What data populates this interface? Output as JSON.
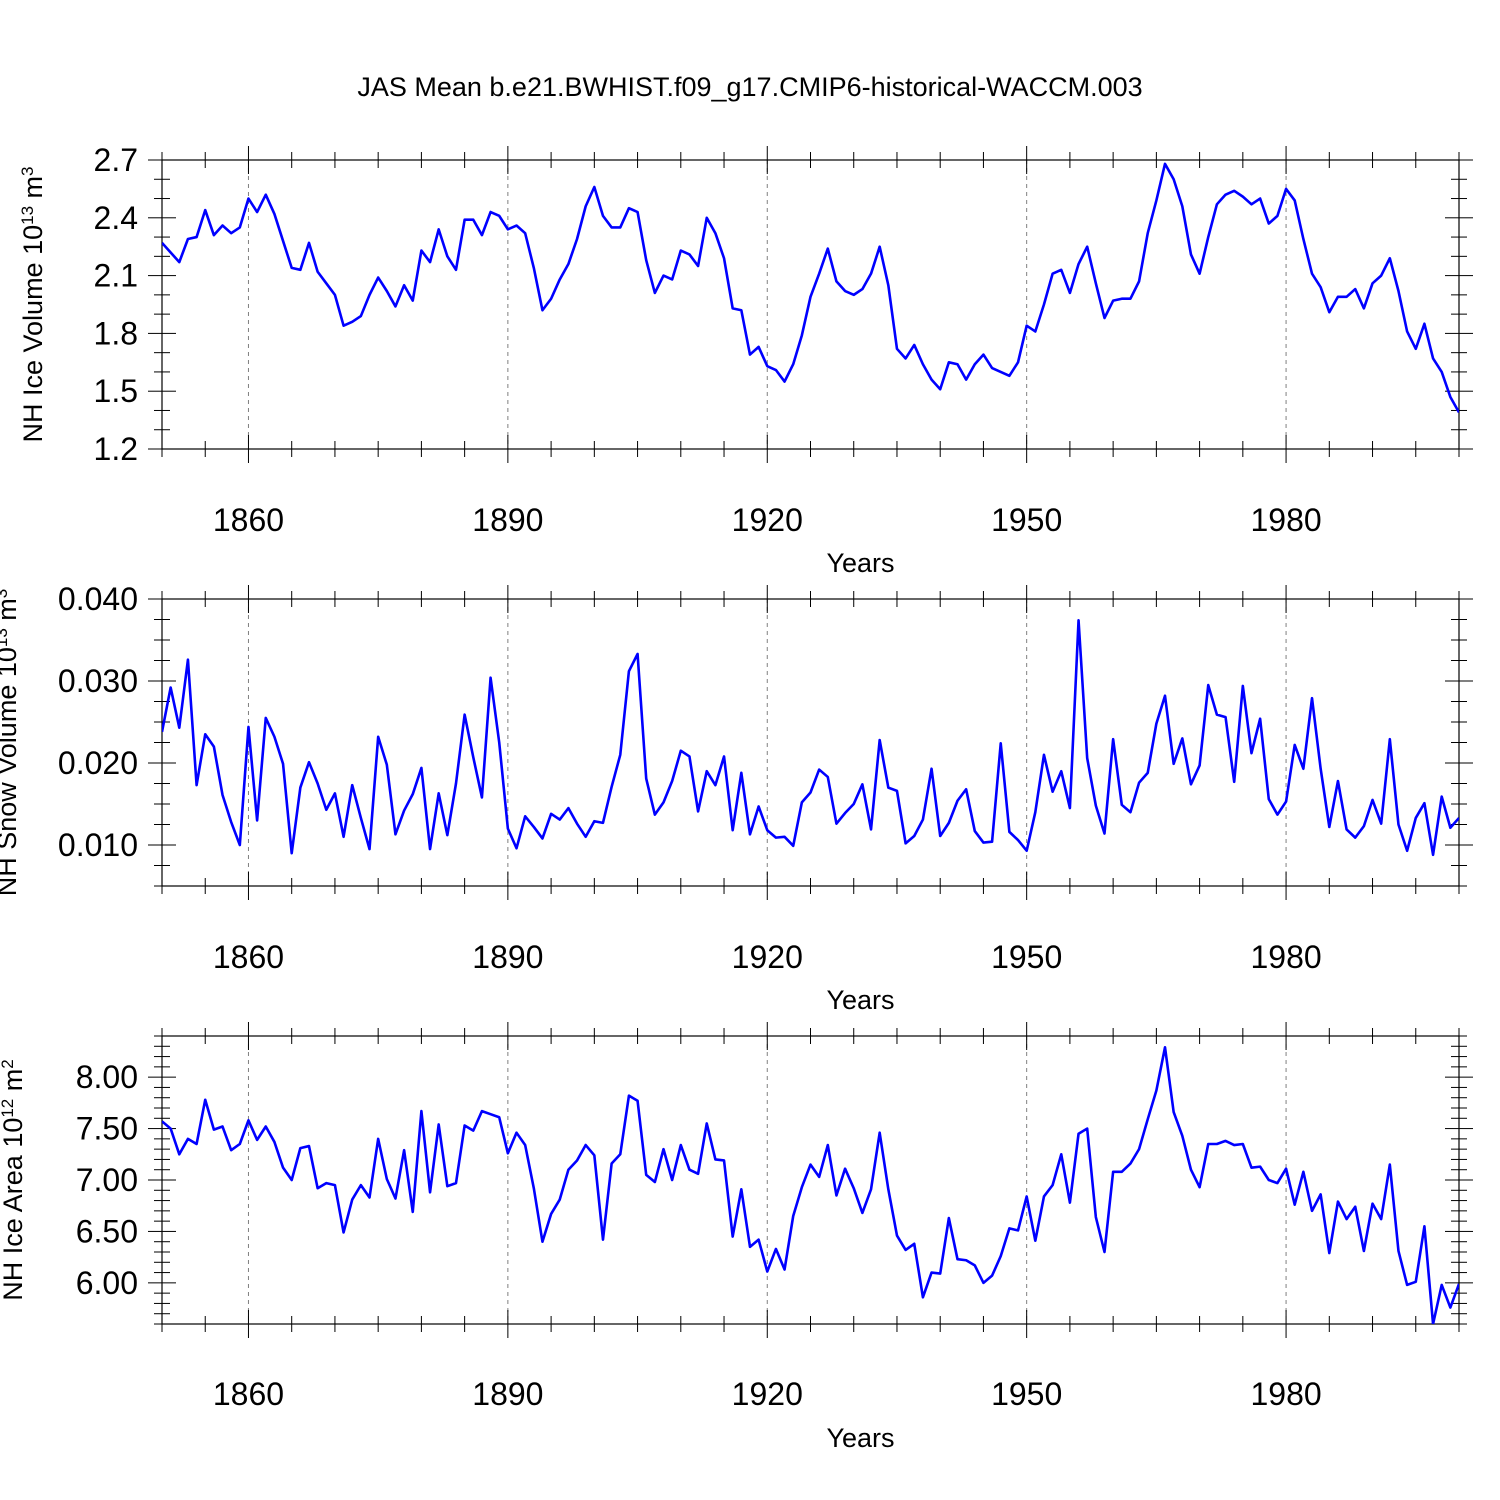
{
  "figure_title": "JAS Mean b.e21.BWHIST.f09_g17.CMIP6-historical-WACCM.003",
  "colors": {
    "series": "#0000ff",
    "frame": "#000000",
    "gridline": "#808080"
  },
  "chart_data": [
    {
      "type": "line",
      "title": "",
      "xlabel": "Years",
      "ylabel_main": "NH Ice Volume 10",
      "ylabel_sup": "13",
      "ylabel_unit": " m",
      "ylabel_unit_sup": "3",
      "xlim": [
        1850,
        2000
      ],
      "ylim": [
        1.2,
        2.7
      ],
      "grid": "dashed vertical lines at major x ticks",
      "xticks": [
        1860,
        1890,
        1920,
        1950,
        1980
      ],
      "xtick_labels": [
        "1860",
        "1890",
        "1920",
        "1950",
        "1980"
      ],
      "yticks": [
        1.2,
        1.5,
        1.8,
        2.1,
        2.4,
        2.7
      ],
      "ytick_labels": [
        "1.2",
        "1.5",
        "1.8",
        "2.1",
        "2.4",
        "2.7"
      ],
      "series": [
        {
          "name": "NH Ice Volume",
          "x_start": 1850,
          "x_step": 1,
          "values": [
            2.27,
            2.22,
            2.17,
            2.29,
            2.3,
            2.44,
            2.31,
            2.36,
            2.32,
            2.35,
            2.5,
            2.43,
            2.52,
            2.42,
            2.28,
            2.14,
            2.13,
            2.27,
            2.12,
            2.06,
            2.0,
            1.84,
            1.86,
            1.89,
            2.0,
            2.09,
            2.02,
            1.94,
            2.05,
            1.97,
            2.23,
            2.17,
            2.34,
            2.2,
            2.13,
            2.39,
            2.39,
            2.31,
            2.43,
            2.41,
            2.34,
            2.36,
            2.32,
            2.14,
            1.92,
            1.98,
            2.08,
            2.16,
            2.29,
            2.46,
            2.56,
            2.41,
            2.35,
            2.35,
            2.45,
            2.43,
            2.18,
            2.01,
            2.1,
            2.08,
            2.23,
            2.21,
            2.15,
            2.4,
            2.32,
            2.19,
            1.93,
            1.92,
            1.69,
            1.73,
            1.63,
            1.61,
            1.55,
            1.64,
            1.79,
            1.99,
            2.11,
            2.24,
            2.07,
            2.02,
            2.0,
            2.03,
            2.11,
            2.25,
            2.05,
            1.72,
            1.67,
            1.74,
            1.64,
            1.56,
            1.51,
            1.65,
            1.64,
            1.56,
            1.64,
            1.69,
            1.62,
            1.6,
            1.58,
            1.65,
            1.84,
            1.81,
            1.95,
            2.11,
            2.13,
            2.01,
            2.16,
            2.25,
            2.06,
            1.88,
            1.97,
            1.98,
            1.98,
            2.07,
            2.32,
            2.49,
            2.68,
            2.6,
            2.46,
            2.21,
            2.11,
            2.3,
            2.47,
            2.52,
            2.54,
            2.51,
            2.47,
            2.5,
            2.37,
            2.41,
            2.55,
            2.49,
            2.29,
            2.11,
            2.04,
            1.91,
            1.99,
            1.99,
            2.03,
            1.93,
            2.06,
            2.1,
            2.19,
            2.02,
            1.81,
            1.72,
            1.85,
            1.67,
            1.6,
            1.47,
            1.39
          ]
        }
      ]
    },
    {
      "type": "line",
      "title": "",
      "xlabel": "Years",
      "ylabel_main": "NH Snow Volume 10",
      "ylabel_sup": "13",
      "ylabel_unit": " m",
      "ylabel_unit_sup": "3",
      "xlim": [
        1850,
        2000
      ],
      "ylim": [
        0.005,
        0.04
      ],
      "grid": "dashed vertical lines at major x ticks",
      "xticks": [
        1860,
        1890,
        1920,
        1950,
        1980
      ],
      "xtick_labels": [
        "1860",
        "1890",
        "1920",
        "1950",
        "1980"
      ],
      "yticks": [
        0.01,
        0.02,
        0.03,
        0.04
      ],
      "ytick_labels": [
        "0.010",
        "0.020",
        "0.030",
        "0.040"
      ],
      "series": [
        {
          "name": "NH Snow Volume",
          "x_start": 1850,
          "x_step": 1,
          "values": [
            0.0238,
            0.0292,
            0.0243,
            0.0326,
            0.0173,
            0.0235,
            0.022,
            0.0161,
            0.0128,
            0.01,
            0.0244,
            0.013,
            0.0255,
            0.0232,
            0.0199,
            0.009,
            0.017,
            0.0201,
            0.0175,
            0.0143,
            0.0163,
            0.011,
            0.0173,
            0.0133,
            0.0095,
            0.0232,
            0.0198,
            0.0113,
            0.0142,
            0.0162,
            0.0194,
            0.0095,
            0.0163,
            0.0112,
            0.0175,
            0.0259,
            0.0207,
            0.0158,
            0.0304,
            0.0225,
            0.012,
            0.0096,
            0.0135,
            0.0122,
            0.0108,
            0.0138,
            0.0131,
            0.0145,
            0.0126,
            0.011,
            0.0129,
            0.0127,
            0.0171,
            0.021,
            0.0312,
            0.0333,
            0.0181,
            0.0137,
            0.0152,
            0.0178,
            0.0215,
            0.0208,
            0.0141,
            0.019,
            0.0173,
            0.0208,
            0.0118,
            0.0188,
            0.0113,
            0.0147,
            0.0118,
            0.0109,
            0.011,
            0.0099,
            0.0152,
            0.0164,
            0.0192,
            0.0183,
            0.0126,
            0.0139,
            0.015,
            0.0174,
            0.0119,
            0.0228,
            0.017,
            0.0166,
            0.0102,
            0.0111,
            0.0131,
            0.0193,
            0.0111,
            0.0127,
            0.0154,
            0.0168,
            0.0117,
            0.0103,
            0.0104,
            0.0224,
            0.0116,
            0.0106,
            0.0093,
            0.014,
            0.021,
            0.0165,
            0.019,
            0.0145,
            0.0374,
            0.0206,
            0.0148,
            0.0114,
            0.0229,
            0.0149,
            0.014,
            0.0176,
            0.0188,
            0.0248,
            0.0282,
            0.0199,
            0.023,
            0.0174,
            0.0197,
            0.0295,
            0.0259,
            0.0256,
            0.0177,
            0.0294,
            0.0212,
            0.0254,
            0.0156,
            0.0137,
            0.0153,
            0.0222,
            0.0193,
            0.0279,
            0.0193,
            0.0122,
            0.0178,
            0.0119,
            0.0109,
            0.0123,
            0.0155,
            0.0126,
            0.0229,
            0.0125,
            0.0093,
            0.0133,
            0.0151,
            0.0088,
            0.0159,
            0.0121,
            0.0133
          ]
        }
      ]
    },
    {
      "type": "line",
      "title": "",
      "xlabel": "Years",
      "ylabel_main": "NH Ice Area 10",
      "ylabel_sup": "12",
      "ylabel_unit": " m",
      "ylabel_unit_sup": "2",
      "xlim": [
        1850,
        2000
      ],
      "ylim": [
        5.6,
        8.4
      ],
      "grid": "dashed vertical lines at major x ticks",
      "xticks": [
        1860,
        1890,
        1920,
        1950,
        1980
      ],
      "xtick_labels": [
        "1860",
        "1890",
        "1920",
        "1950",
        "1980"
      ],
      "yticks": [
        6.0,
        6.5,
        7.0,
        7.5,
        8.0
      ],
      "ytick_labels": [
        "6.00",
        "6.50",
        "7.00",
        "7.50",
        "8.00"
      ],
      "series": [
        {
          "name": "NH Ice Area",
          "x_start": 1850,
          "x_step": 1,
          "values": [
            7.57,
            7.5,
            7.25,
            7.4,
            7.35,
            7.78,
            7.49,
            7.52,
            7.29,
            7.35,
            7.58,
            7.39,
            7.52,
            7.37,
            7.12,
            7.0,
            7.31,
            7.33,
            6.92,
            6.97,
            6.95,
            6.49,
            6.81,
            6.95,
            6.83,
            7.4,
            7.01,
            6.82,
            7.29,
            6.69,
            7.67,
            6.88,
            7.54,
            6.94,
            6.97,
            7.53,
            7.48,
            7.67,
            7.64,
            7.61,
            7.26,
            7.46,
            7.34,
            6.92,
            6.4,
            6.67,
            6.81,
            7.1,
            7.19,
            7.34,
            7.24,
            6.42,
            7.16,
            7.25,
            7.82,
            7.77,
            7.05,
            6.98,
            7.3,
            7.0,
            7.34,
            7.1,
            7.06,
            7.55,
            7.2,
            7.19,
            6.45,
            6.91,
            6.35,
            6.42,
            6.11,
            6.33,
            6.13,
            6.65,
            6.93,
            7.15,
            7.03,
            7.34,
            6.85,
            7.11,
            6.92,
            6.68,
            6.91,
            7.46,
            6.91,
            6.46,
            6.32,
            6.38,
            5.86,
            6.1,
            6.09,
            6.63,
            6.23,
            6.22,
            6.17,
            6.0,
            6.07,
            6.26,
            6.53,
            6.51,
            6.84,
            6.41,
            6.84,
            6.95,
            7.25,
            6.78,
            7.45,
            7.5,
            6.64,
            6.3,
            7.08,
            7.08,
            7.16,
            7.3,
            7.59,
            7.87,
            8.29,
            7.66,
            7.43,
            7.1,
            6.93,
            7.35,
            7.35,
            7.38,
            7.34,
            7.35,
            7.12,
            7.13,
            7.0,
            6.97,
            7.11,
            6.76,
            7.08,
            6.7,
            6.86,
            6.29,
            6.79,
            6.62,
            6.74,
            6.31,
            6.77,
            6.62,
            7.15,
            6.31,
            5.98,
            6.01,
            6.55,
            5.6,
            5.98,
            5.76,
            5.99
          ]
        }
      ]
    }
  ]
}
